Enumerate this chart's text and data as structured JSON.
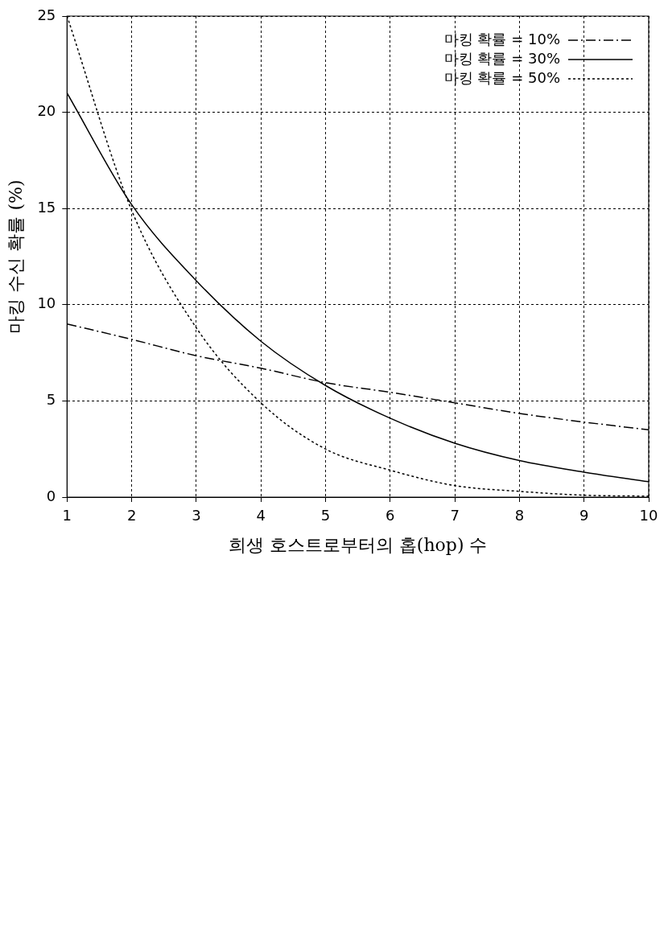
{
  "chart_data": {
    "type": "line",
    "xlabel": "희생 호스트로부터의 홉(hop) 수",
    "ylabel": "마킹 수신 확률 (%)",
    "x": [
      1,
      2,
      3,
      4,
      5,
      6,
      7,
      8,
      9,
      10
    ],
    "xlim": [
      1,
      10
    ],
    "xticks": [
      1,
      2,
      3,
      4,
      5,
      6,
      7,
      8,
      9,
      10
    ],
    "ylim": [
      0,
      25
    ],
    "yticks": [
      0,
      5,
      10,
      15,
      20,
      25
    ],
    "grid": true,
    "legend": "top right",
    "marker": "none",
    "series": [
      {
        "name": "마킹 확률 = 10%",
        "color": "#000000",
        "line_style": "dashed",
        "values": [
          9.0,
          8.2,
          7.35,
          6.7,
          5.95,
          5.45,
          4.9,
          4.35,
          3.9,
          3.5
        ]
      },
      {
        "name": "마킹 확률 = 30%",
        "color": "#000000",
        "line_style": "solid",
        "values": [
          21.0,
          15.2,
          11.25,
          8.1,
          5.8,
          4.1,
          2.8,
          1.9,
          1.3,
          0.8
        ]
      },
      {
        "name": "마킹 확률 = 50%",
        "color": "#000000",
        "line_style": "dotted",
        "values": [
          25,
          14.9,
          8.8,
          4.9,
          2.5,
          1.4,
          0.6,
          0.3,
          0.1,
          0.05
        ]
      }
    ]
  }
}
